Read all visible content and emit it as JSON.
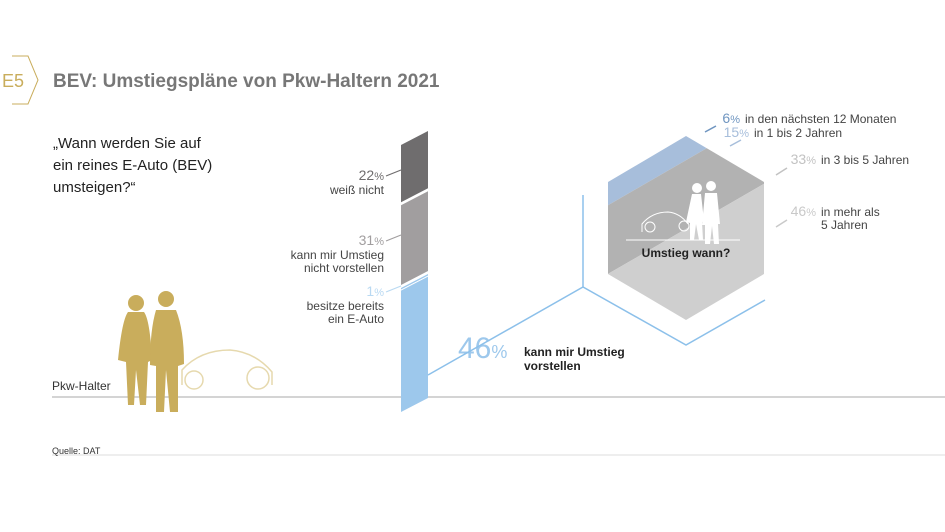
{
  "header": {
    "badge": "E5",
    "title": "BEV: Umstiegspläne von Pkw-Haltern 2021"
  },
  "question": [
    "„Wann werden Sie auf",
    "ein reines E-Auto (BEV)",
    "umsteigen?“"
  ],
  "ground_label": "Pkw-Halter",
  "source": "Quelle: DAT",
  "hex_label": "Umstieg wann?",
  "colors": {
    "gold": "#c9ad5c",
    "dark_gray": "#6f6d6e",
    "gray": "#a19e9f",
    "light_blue": "#9dc8ec",
    "blue_line": "#8cc0ea"
  },
  "chart_data": [
    {
      "type": "bar",
      "stacked": true,
      "unit": "%",
      "segments": [
        {
          "value": 22,
          "pct": "22",
          "label": [
            "weiß nicht"
          ],
          "color": "#6f6d6e",
          "text_color": "#6f6d6e"
        },
        {
          "value": 31,
          "pct": "31",
          "label": [
            "kann mir Umstieg",
            "nicht vorstellen"
          ],
          "color": "#a19e9f",
          "text_color": "#a19e9f"
        },
        {
          "value": 1,
          "pct": "1",
          "label": [
            "besitze bereits",
            "ein E-Auto"
          ],
          "color": "#9dc8ec",
          "text_color": "#b9d9f2"
        },
        {
          "value": 46,
          "pct": "46",
          "label": [
            "kann mir Umstieg",
            "vorstellen"
          ],
          "color": "#9dc8ec",
          "text_color": "#9dc8ec"
        }
      ]
    },
    {
      "type": "stacked-hexagon",
      "unit": "%",
      "segments": [
        {
          "value": 6,
          "pct": "6",
          "label": [
            "in den nächsten 12 Monaten"
          ],
          "color": "#6f95c0"
        },
        {
          "value": 15,
          "pct": "15",
          "label": [
            "in 1 bis 2 Jahren"
          ],
          "color": "#a7bedb"
        },
        {
          "value": 33,
          "pct": "33",
          "label": [
            "in 3 bis 5 Jahren"
          ],
          "color": "#b2b2b2"
        },
        {
          "value": 46,
          "pct": "46",
          "label": [
            "in mehr als",
            "5 Jahren"
          ],
          "color": "#cfcfcf"
        }
      ]
    }
  ]
}
